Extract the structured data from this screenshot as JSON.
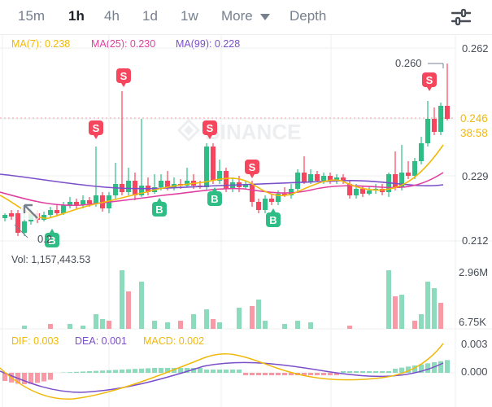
{
  "tabs": [
    {
      "label": "15m",
      "active": false
    },
    {
      "label": "1h",
      "active": true
    },
    {
      "label": "4h",
      "active": false
    },
    {
      "label": "1d",
      "active": false
    },
    {
      "label": "1w",
      "active": false
    }
  ],
  "more_label": "More",
  "depth_label": "Depth",
  "icons": {
    "settings": "sliders-icon",
    "more_dropdown": "caret-down-icon"
  },
  "ma": {
    "ma7": "MA(7): 0.238",
    "ma25": "MA(25): 0.230",
    "ma99": "MA(99): 0.228"
  },
  "price_axis": {
    "top": "0.262",
    "mid": "0.229",
    "bottom": "0.212"
  },
  "last_price": "0.246",
  "countdown": "38:58",
  "high_marker": "0.260",
  "low_marker": "0.2",
  "watermark": "BINANCE",
  "volume": {
    "label": "Vol: 1,157,443.53",
    "axis_top": "2.96M",
    "axis_bottom": "6.75K"
  },
  "macd": {
    "dif": "DIF: 0.003",
    "dea": "DEA: 0.001",
    "macd": "MACD: 0.002",
    "axis_top": "0.003",
    "axis_mid": "0.000"
  },
  "markers": {
    "sell": "S",
    "buy": "B"
  },
  "colors": {
    "up": "#2ebd85",
    "down": "#f6465d",
    "ma7": "#f0b90b",
    "ma25": "#e040a0",
    "ma99": "#7b4fc9",
    "grid": "#eef0f2",
    "text_muted": "#76808f"
  }
}
